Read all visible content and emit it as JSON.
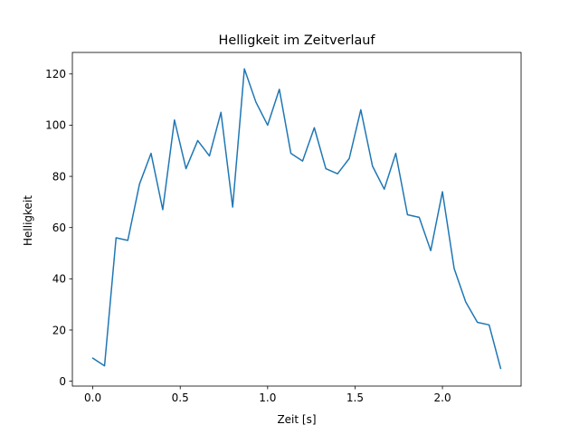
{
  "chart_data": {
    "type": "line",
    "title": "Helligkeit im Zeitverlauf",
    "xlabel": "Zeit [s]",
    "ylabel": "Helligkeit",
    "xlim": [
      -0.117,
      2.45
    ],
    "ylim": [
      -1.9,
      128.4
    ],
    "grid": false,
    "xticks": [
      0.0,
      0.5,
      1.0,
      1.5,
      2.0
    ],
    "xtick_labels": [
      "0.0",
      "0.5",
      "1.0",
      "1.5",
      "2.0"
    ],
    "yticks": [
      0,
      20,
      40,
      60,
      80,
      100,
      120
    ],
    "ytick_labels": [
      "0",
      "20",
      "40",
      "60",
      "80",
      "100",
      "120"
    ],
    "series": [
      {
        "color": "#1f77b4",
        "x": [
          0.0,
          0.067,
          0.133,
          0.2,
          0.267,
          0.333,
          0.4,
          0.467,
          0.533,
          0.6,
          0.667,
          0.733,
          0.8,
          0.867,
          0.933,
          1.0,
          1.067,
          1.133,
          1.2,
          1.267,
          1.333,
          1.4,
          1.467,
          1.533,
          1.6,
          1.667,
          1.733,
          1.8,
          1.867,
          1.933,
          2.0,
          2.067,
          2.133,
          2.2,
          2.267,
          2.333
        ],
        "y": [
          9,
          6,
          56,
          55,
          77,
          89,
          67,
          102,
          83,
          94,
          88,
          105,
          68,
          122,
          109,
          100,
          114,
          89,
          86,
          99,
          83,
          81,
          87,
          106,
          84,
          75,
          89,
          65,
          64,
          51,
          74,
          44,
          31,
          23,
          22,
          5
        ]
      }
    ]
  }
}
